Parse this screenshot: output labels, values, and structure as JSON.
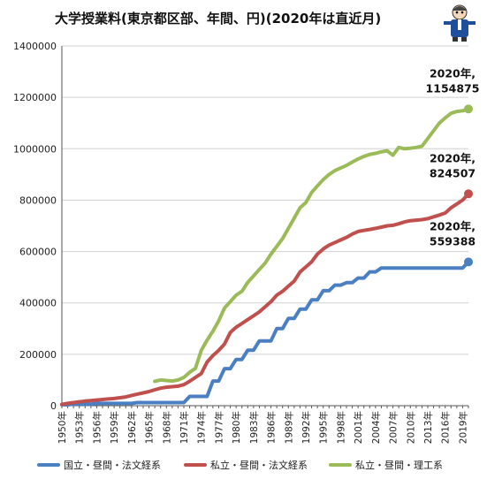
{
  "title": "大学授業料(東京都区部、年間、円)(2020年は直近月)",
  "mascot": "professor-mascot-icon",
  "colors": {
    "kokuritsu": "#4a7fc1",
    "shiritsu_hosei": "#c0504d",
    "shiritsu_riko": "#9bbb59",
    "grid": "#d0d0d0",
    "axis": "#555555"
  },
  "chart_data": {
    "type": "line",
    "title": "大学授業料(東京都区部、年間、円)(2020年は直近月)",
    "xlabel": "",
    "ylabel": "",
    "ylim": [
      0,
      1400000
    ],
    "xlim": [
      1950,
      2020
    ],
    "y_ticks": [
      "0",
      "200000",
      "400000",
      "600000",
      "800000",
      "1000000",
      "1200000",
      "1400000"
    ],
    "x_tick_labels": [
      "1950年",
      "1953年",
      "1956年",
      "1959年",
      "1962年",
      "1965年",
      "1968年",
      "1971年",
      "1974年",
      "1977年",
      "1980年",
      "1983年",
      "1986年",
      "1989年",
      "1992年",
      "1995年",
      "1998年",
      "2001年",
      "2004年",
      "2007年",
      "2010年",
      "2013年",
      "2016年",
      "2019年"
    ],
    "grid": "horizontal",
    "legend_position": "bottom",
    "series": [
      {
        "name": "国立・昼間・法文経系",
        "color": "#4a7fc1",
        "points": [
          [
            1950,
            3600
          ],
          [
            1951,
            3600
          ],
          [
            1952,
            6000
          ],
          [
            1953,
            6000
          ],
          [
            1954,
            6000
          ],
          [
            1955,
            6000
          ],
          [
            1956,
            9000
          ],
          [
            1957,
            9000
          ],
          [
            1958,
            9000
          ],
          [
            1959,
            9000
          ],
          [
            1960,
            9000
          ],
          [
            1961,
            9000
          ],
          [
            1962,
            9000
          ],
          [
            1963,
            12000
          ],
          [
            1964,
            12000
          ],
          [
            1965,
            12000
          ],
          [
            1966,
            12000
          ],
          [
            1967,
            12000
          ],
          [
            1968,
            12000
          ],
          [
            1969,
            12000
          ],
          [
            1970,
            12000
          ],
          [
            1971,
            12000
          ],
          [
            1972,
            36000
          ],
          [
            1973,
            36000
          ],
          [
            1974,
            36000
          ],
          [
            1975,
            36000
          ],
          [
            1976,
            96000
          ],
          [
            1977,
            96000
          ],
          [
            1978,
            144000
          ],
          [
            1979,
            144000
          ],
          [
            1980,
            180000
          ],
          [
            1981,
            180000
          ],
          [
            1982,
            216000
          ],
          [
            1983,
            216000
          ],
          [
            1984,
            252000
          ],
          [
            1985,
            252000
          ],
          [
            1986,
            252000
          ],
          [
            1987,
            300000
          ],
          [
            1988,
            300000
          ],
          [
            1989,
            339600
          ],
          [
            1990,
            339600
          ],
          [
            1991,
            375600
          ],
          [
            1992,
            375600
          ],
          [
            1993,
            411600
          ],
          [
            1994,
            411600
          ],
          [
            1995,
            447600
          ],
          [
            1996,
            447600
          ],
          [
            1997,
            469200
          ],
          [
            1998,
            469200
          ],
          [
            1999,
            478800
          ],
          [
            2000,
            478800
          ],
          [
            2001,
            496800
          ],
          [
            2002,
            496800
          ],
          [
            2003,
            520800
          ],
          [
            2004,
            520800
          ],
          [
            2005,
            535800
          ],
          [
            2006,
            535800
          ],
          [
            2007,
            535800
          ],
          [
            2008,
            535800
          ],
          [
            2009,
            535800
          ],
          [
            2010,
            535800
          ],
          [
            2011,
            535800
          ],
          [
            2012,
            535800
          ],
          [
            2013,
            535800
          ],
          [
            2014,
            535800
          ],
          [
            2015,
            535800
          ],
          [
            2016,
            535800
          ],
          [
            2017,
            535800
          ],
          [
            2018,
            535800
          ],
          [
            2019,
            535800
          ],
          [
            2020,
            559388
          ]
        ]
      },
      {
        "name": "私立・昼間・法文経系",
        "color": "#c0504d",
        "points": [
          [
            1950,
            5000
          ],
          [
            1951,
            9000
          ],
          [
            1952,
            12000
          ],
          [
            1953,
            15000
          ],
          [
            1954,
            18000
          ],
          [
            1955,
            20000
          ],
          [
            1956,
            22000
          ],
          [
            1957,
            24000
          ],
          [
            1958,
            26000
          ],
          [
            1959,
            28000
          ],
          [
            1960,
            31000
          ],
          [
            1961,
            34000
          ],
          [
            1962,
            40000
          ],
          [
            1963,
            45000
          ],
          [
            1964,
            50000
          ],
          [
            1965,
            55000
          ],
          [
            1966,
            62000
          ],
          [
            1967,
            68000
          ],
          [
            1968,
            72000
          ],
          [
            1969,
            74000
          ],
          [
            1970,
            76000
          ],
          [
            1971,
            82000
          ],
          [
            1972,
            95000
          ],
          [
            1973,
            110000
          ],
          [
            1974,
            125000
          ],
          [
            1975,
            170000
          ],
          [
            1976,
            195000
          ],
          [
            1977,
            215000
          ],
          [
            1978,
            240000
          ],
          [
            1979,
            285000
          ],
          [
            1980,
            305000
          ],
          [
            1981,
            320000
          ],
          [
            1982,
            335000
          ],
          [
            1983,
            350000
          ],
          [
            1984,
            365000
          ],
          [
            1985,
            385000
          ],
          [
            1986,
            405000
          ],
          [
            1987,
            430000
          ],
          [
            1988,
            445000
          ],
          [
            1989,
            465000
          ],
          [
            1990,
            485000
          ],
          [
            1991,
            520000
          ],
          [
            1992,
            540000
          ],
          [
            1993,
            560000
          ],
          [
            1994,
            590000
          ],
          [
            1995,
            610000
          ],
          [
            1996,
            625000
          ],
          [
            1997,
            635000
          ],
          [
            1998,
            645000
          ],
          [
            1999,
            655000
          ],
          [
            2000,
            668000
          ],
          [
            2001,
            678000
          ],
          [
            2002,
            682000
          ],
          [
            2003,
            686000
          ],
          [
            2004,
            690000
          ],
          [
            2005,
            695000
          ],
          [
            2006,
            700000
          ],
          [
            2007,
            702000
          ],
          [
            2008,
            708000
          ],
          [
            2009,
            715000
          ],
          [
            2010,
            720000
          ],
          [
            2011,
            722000
          ],
          [
            2012,
            724000
          ],
          [
            2013,
            728000
          ],
          [
            2014,
            735000
          ],
          [
            2015,
            742000
          ],
          [
            2016,
            750000
          ],
          [
            2017,
            770000
          ],
          [
            2018,
            785000
          ],
          [
            2019,
            800000
          ],
          [
            2020,
            824507
          ]
        ]
      },
      {
        "name": "私立・昼間・理工系",
        "color": "#9bbb59",
        "points": [
          [
            1966,
            95000
          ],
          [
            1967,
            100000
          ],
          [
            1968,
            98000
          ],
          [
            1969,
            96000
          ],
          [
            1970,
            100000
          ],
          [
            1971,
            110000
          ],
          [
            1972,
            130000
          ],
          [
            1973,
            145000
          ],
          [
            1974,
            215000
          ],
          [
            1975,
            255000
          ],
          [
            1976,
            290000
          ],
          [
            1977,
            330000
          ],
          [
            1978,
            380000
          ],
          [
            1979,
            405000
          ],
          [
            1980,
            430000
          ],
          [
            1981,
            445000
          ],
          [
            1982,
            480000
          ],
          [
            1983,
            505000
          ],
          [
            1984,
            530000
          ],
          [
            1985,
            555000
          ],
          [
            1986,
            590000
          ],
          [
            1987,
            620000
          ],
          [
            1988,
            650000
          ],
          [
            1989,
            690000
          ],
          [
            1990,
            730000
          ],
          [
            1991,
            770000
          ],
          [
            1992,
            790000
          ],
          [
            1993,
            830000
          ],
          [
            1994,
            855000
          ],
          [
            1995,
            880000
          ],
          [
            1996,
            900000
          ],
          [
            1997,
            915000
          ],
          [
            1998,
            925000
          ],
          [
            1999,
            935000
          ],
          [
            2000,
            948000
          ],
          [
            2001,
            960000
          ],
          [
            2002,
            970000
          ],
          [
            2003,
            978000
          ],
          [
            2004,
            982000
          ],
          [
            2005,
            988000
          ],
          [
            2006,
            992000
          ],
          [
            2007,
            975000
          ],
          [
            2008,
            1005000
          ],
          [
            2009,
            1000000
          ],
          [
            2010,
            1002000
          ],
          [
            2011,
            1005000
          ],
          [
            2012,
            1010000
          ],
          [
            2013,
            1040000
          ],
          [
            2014,
            1070000
          ],
          [
            2015,
            1100000
          ],
          [
            2016,
            1120000
          ],
          [
            2017,
            1138000
          ],
          [
            2018,
            1145000
          ],
          [
            2019,
            1148000
          ],
          [
            2020,
            1154875
          ]
        ]
      }
    ],
    "annotations": [
      {
        "series": 2,
        "line1": "2020年,",
        "line2": "1154875"
      },
      {
        "series": 1,
        "line1": "2020年,",
        "line2": "824507"
      },
      {
        "series": 0,
        "line1": "2020年,",
        "line2": "559388"
      }
    ]
  }
}
